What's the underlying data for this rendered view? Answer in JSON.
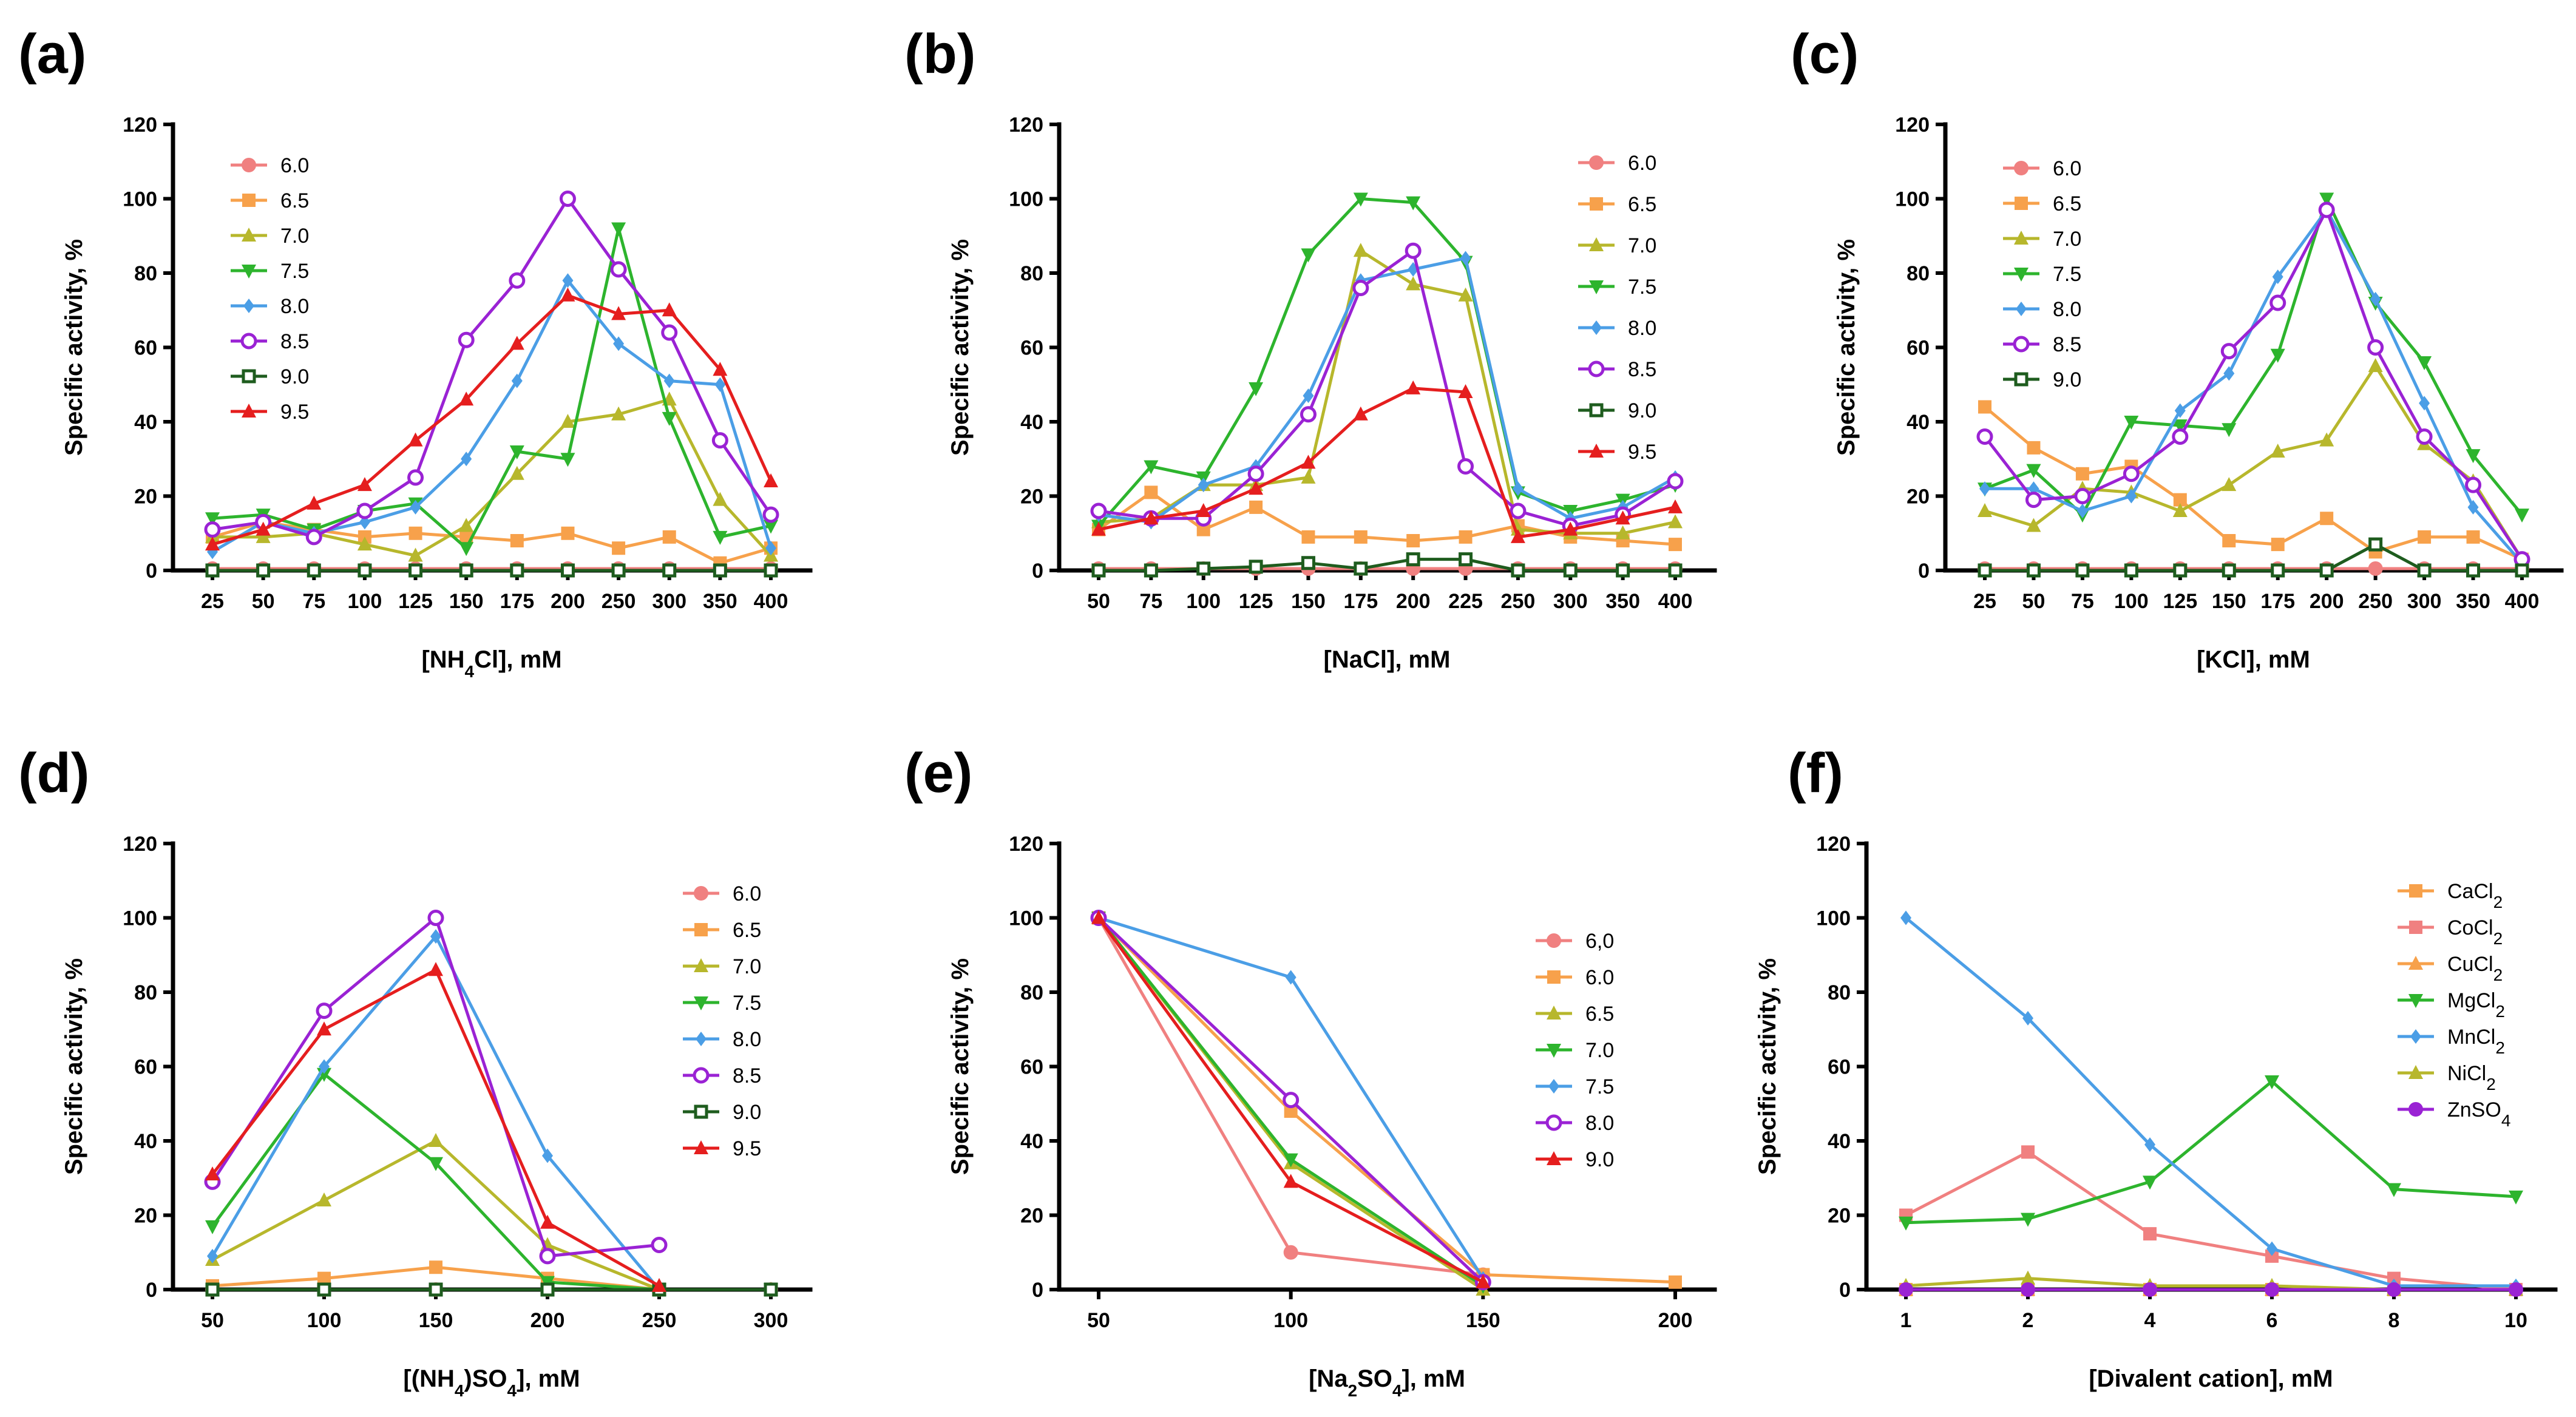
{
  "chart_data": [
    {
      "type": "line",
      "panel": "(a)",
      "xlabel": "[NH4Cl], mM",
      "xlabel_sub": "4",
      "ylabel": "Specific activity, %",
      "ylim": [
        0,
        120
      ],
      "yticks": [
        0,
        20,
        40,
        60,
        80,
        100,
        120
      ],
      "legend": "top-left",
      "categories": [
        "25",
        "50",
        "75",
        "100",
        "125",
        "150",
        "175",
        "200",
        "250",
        "300",
        "350",
        "400"
      ],
      "series": [
        {
          "name": "6.0",
          "color": "#f08080",
          "marker": "circle",
          "values": [
            0.5,
            0.5,
            0.5,
            0.5,
            0.5,
            0.5,
            0.5,
            0.5,
            0.5,
            0.5,
            0.5,
            0.5
          ]
        },
        {
          "name": "6.5",
          "color": "#f7a14b",
          "marker": "square",
          "values": [
            9,
            13,
            11,
            9,
            10,
            9,
            8,
            10,
            6,
            9,
            2,
            6
          ]
        },
        {
          "name": "7.0",
          "color": "#b7b72c",
          "marker": "tri-up",
          "values": [
            9,
            9,
            10,
            7,
            4,
            12,
            26,
            40,
            42,
            46,
            19,
            4
          ]
        },
        {
          "name": "7.5",
          "color": "#2db42d",
          "marker": "tri-down",
          "values": [
            14,
            15,
            11,
            16,
            18,
            6,
            32,
            30,
            92,
            41,
            9,
            12
          ]
        },
        {
          "name": "8.0",
          "color": "#4b9ee6",
          "marker": "diamond",
          "values": [
            5,
            13,
            10,
            13,
            17,
            30,
            51,
            78,
            61,
            51,
            50,
            6
          ]
        },
        {
          "name": "8.5",
          "color": "#9a22d4",
          "marker": "open-circle",
          "values": [
            11,
            13,
            9,
            16,
            25,
            62,
            78,
            100,
            81,
            64,
            35,
            15
          ]
        },
        {
          "name": "9.0",
          "color": "#1e5c1e",
          "marker": "open-square",
          "values": [
            0,
            0,
            0,
            0,
            0,
            0,
            0,
            0,
            0,
            0,
            0,
            0
          ]
        },
        {
          "name": "9.5",
          "color": "#e51e1e",
          "marker": "tri-up",
          "values": [
            7,
            11,
            18,
            23,
            35,
            46,
            61,
            74,
            69,
            70,
            54,
            24
          ]
        }
      ]
    },
    {
      "type": "line",
      "panel": "(b)",
      "xlabel": "[NaCl], mM",
      "xlabel_sub": "",
      "ylabel": "Specific activity, %",
      "ylim": [
        0,
        120
      ],
      "yticks": [
        0,
        20,
        40,
        60,
        80,
        100,
        120
      ],
      "legend": "top-right",
      "categories": [
        "50",
        "75",
        "100",
        "125",
        "150",
        "175",
        "200",
        "225",
        "250",
        "300",
        "350",
        "400"
      ],
      "series": [
        {
          "name": "6.0",
          "color": "#f08080",
          "marker": "circle",
          "values": [
            0.5,
            0.5,
            0.5,
            0.5,
            0.5,
            0.5,
            0.5,
            0.5,
            0.5,
            0.5,
            0.5,
            0.5
          ]
        },
        {
          "name": "6.5",
          "color": "#f7a14b",
          "marker": "square",
          "values": [
            11,
            21,
            11,
            17,
            9,
            9,
            8,
            9,
            12,
            9,
            8,
            7
          ]
        },
        {
          "name": "7.0",
          "color": "#b7b72c",
          "marker": "tri-up",
          "values": [
            13,
            14,
            23,
            23,
            25,
            86,
            77,
            74,
            11,
            10,
            10,
            13
          ]
        },
        {
          "name": "7.5",
          "color": "#2db42d",
          "marker": "tri-down",
          "values": [
            12,
            28,
            25,
            49,
            85,
            100,
            99,
            83,
            21,
            16,
            19,
            23
          ]
        },
        {
          "name": "8.0",
          "color": "#4b9ee6",
          "marker": "diamond",
          "values": [
            15,
            13,
            23,
            28,
            47,
            78,
            81,
            84,
            22,
            14,
            17,
            25
          ]
        },
        {
          "name": "8.5",
          "color": "#9a22d4",
          "marker": "open-circle",
          "values": [
            16,
            14,
            14,
            26,
            42,
            76,
            86,
            28,
            16,
            12,
            15,
            24
          ]
        },
        {
          "name": "9.0",
          "color": "#1e5c1e",
          "marker": "open-square",
          "values": [
            0,
            0,
            0.5,
            1,
            2,
            0.5,
            3,
            3,
            0,
            0,
            0,
            0
          ]
        },
        {
          "name": "9.5",
          "color": "#e51e1e",
          "marker": "tri-up",
          "values": [
            11,
            14,
            16,
            22,
            29,
            42,
            49,
            48,
            9,
            11,
            14,
            17
          ]
        }
      ]
    },
    {
      "type": "line",
      "panel": "(c)",
      "xlabel": "[KCl], mM",
      "xlabel_sub": "",
      "ylabel": "Specific activity, %",
      "ylim": [
        0,
        120
      ],
      "yticks": [
        0,
        20,
        40,
        60,
        80,
        100,
        120
      ],
      "legend": "top-left",
      "categories": [
        "25",
        "50",
        "75",
        "100",
        "125",
        "150",
        "175",
        "200",
        "250",
        "300",
        "350",
        "400"
      ],
      "series": [
        {
          "name": "6.0",
          "color": "#f08080",
          "marker": "circle",
          "values": [
            0.5,
            0.5,
            0.5,
            0.5,
            0.5,
            0.5,
            0.5,
            0.5,
            0.5,
            0.5,
            0.5,
            0.5
          ]
        },
        {
          "name": "6.5",
          "color": "#f7a14b",
          "marker": "square",
          "values": [
            44,
            33,
            26,
            28,
            19,
            8,
            7,
            14,
            5,
            9,
            9,
            3
          ]
        },
        {
          "name": "7.0",
          "color": "#b7b72c",
          "marker": "tri-up",
          "values": [
            16,
            12,
            22,
            21,
            16,
            23,
            32,
            35,
            55,
            34,
            24,
            3
          ]
        },
        {
          "name": "7.5",
          "color": "#2db42d",
          "marker": "tri-down",
          "values": [
            22,
            27,
            15,
            40,
            39,
            38,
            58,
            100,
            72,
            56,
            31,
            15
          ]
        },
        {
          "name": "8.0",
          "color": "#4b9ee6",
          "marker": "diamond",
          "values": [
            22,
            22,
            16,
            20,
            43,
            53,
            79,
            97,
            73,
            45,
            17,
            2
          ]
        },
        {
          "name": "8.5",
          "color": "#9a22d4",
          "marker": "open-circle",
          "values": [
            36,
            19,
            20,
            26,
            36,
            59,
            72,
            97,
            60,
            36,
            23,
            3
          ]
        },
        {
          "name": "9.0",
          "color": "#1e5c1e",
          "marker": "open-square",
          "values": [
            0,
            0,
            0,
            0,
            0,
            0,
            0,
            0,
            7,
            0,
            0,
            0
          ]
        }
      ]
    },
    {
      "type": "line",
      "panel": "(d)",
      "xlabel": "[(NH4)SO4], mM",
      "xlabel_sub": "",
      "ylabel": "Specific activity, %",
      "ylim": [
        0,
        120
      ],
      "yticks": [
        0,
        20,
        40,
        60,
        80,
        100,
        120
      ],
      "legend": "top-right",
      "categories": [
        "50",
        "100",
        "150",
        "200",
        "250",
        "300"
      ],
      "series": [
        {
          "name": "6.0",
          "color": "#f08080",
          "marker": "circle",
          "values": [
            0,
            0,
            0,
            0,
            0,
            0
          ]
        },
        {
          "name": "6.5",
          "color": "#f7a14b",
          "marker": "square",
          "values": [
            1,
            3,
            6,
            3,
            0,
            0
          ]
        },
        {
          "name": "7.0",
          "color": "#b7b72c",
          "marker": "tri-up",
          "values": [
            8,
            24,
            40,
            12,
            0,
            0
          ]
        },
        {
          "name": "7.5",
          "color": "#2db42d",
          "marker": "tri-down",
          "values": [
            17,
            58,
            34,
            2,
            0,
            0
          ]
        },
        {
          "name": "8.0",
          "color": "#4b9ee6",
          "marker": "diamond",
          "values": [
            9,
            60,
            95,
            36,
            0,
            0
          ]
        },
        {
          "name": "8.5",
          "color": "#9a22d4",
          "marker": "open-circle",
          "values": [
            29,
            75,
            100,
            9,
            12,
            null
          ]
        },
        {
          "name": "9.0",
          "color": "#1e5c1e",
          "marker": "open-square",
          "values": [
            0,
            0,
            0,
            0,
            0,
            0
          ]
        },
        {
          "name": "9.5",
          "color": "#e51e1e",
          "marker": "tri-up",
          "values": [
            31,
            70,
            86,
            18,
            1,
            null
          ]
        }
      ]
    },
    {
      "type": "line",
      "panel": "(e)",
      "xlabel": "[Na2SO4], mM",
      "xlabel_sub": "",
      "ylabel": "Specific activity, %",
      "ylim": [
        0,
        120
      ],
      "yticks": [
        0,
        20,
        40,
        60,
        80,
        100,
        120
      ],
      "legend": "right",
      "categories": [
        "50",
        "100",
        "150",
        "200"
      ],
      "series": [
        {
          "name": "6,0",
          "color": "#f08080",
          "marker": "circle",
          "values": [
            100,
            10,
            4,
            null
          ]
        },
        {
          "name": "6.0",
          "color": "#f7a14b",
          "marker": "square",
          "values": [
            100,
            48,
            4,
            2
          ]
        },
        {
          "name": "6.5",
          "color": "#b7b72c",
          "marker": "tri-up",
          "values": [
            100,
            34,
            0,
            null
          ]
        },
        {
          "name": "7.0",
          "color": "#2db42d",
          "marker": "tri-down",
          "values": [
            100,
            35,
            1,
            null
          ]
        },
        {
          "name": "7.5",
          "color": "#4b9ee6",
          "marker": "diamond",
          "values": [
            100,
            84,
            3,
            null
          ]
        },
        {
          "name": "8.0",
          "color": "#9a22d4",
          "marker": "open-circle",
          "values": [
            100,
            51,
            2,
            null
          ]
        },
        {
          "name": "9.0",
          "color": "#e51e1e",
          "marker": "tri-up",
          "values": [
            100,
            29,
            2,
            null
          ]
        }
      ]
    },
    {
      "type": "line",
      "panel": "(f)",
      "xlabel": "[Divalent cation], mM",
      "xlabel_sub": "",
      "ylabel": "Specific activity, %",
      "ylim": [
        0,
        120
      ],
      "yticks": [
        0,
        20,
        40,
        60,
        80,
        100,
        120
      ],
      "legend": "top-right",
      "categories": [
        "1",
        "2",
        "4",
        "6",
        "8",
        "10"
      ],
      "series": [
        {
          "name": "CaCl2",
          "label": "CaCl",
          "sub": "2",
          "color": "#f7a14b",
          "marker": "square",
          "values": [
            0,
            0,
            0,
            0,
            0,
            0
          ]
        },
        {
          "name": "CoCl2",
          "label": "CoCl",
          "sub": "2",
          "color": "#f08080",
          "marker": "square",
          "values": [
            20,
            37,
            15,
            9,
            3,
            0
          ]
        },
        {
          "name": "CuCl2",
          "label": "CuCl",
          "sub": "2",
          "color": "#f7a14b",
          "marker": "tri-up",
          "values": [
            0,
            0,
            0,
            0,
            0,
            0
          ]
        },
        {
          "name": "MgCl2",
          "label": "MgCl",
          "sub": "2",
          "color": "#2db42d",
          "marker": "tri-down",
          "values": [
            18,
            19,
            29,
            56,
            27,
            25
          ]
        },
        {
          "name": "MnCl2",
          "label": "MnCl",
          "sub": "2",
          "color": "#4b9ee6",
          "marker": "diamond",
          "values": [
            100,
            73,
            39,
            11,
            1,
            1
          ]
        },
        {
          "name": "NiCl2",
          "label": "NiCl",
          "sub": "2",
          "color": "#b7b72c",
          "marker": "tri-up",
          "values": [
            1,
            3,
            1,
            1,
            0,
            0
          ]
        },
        {
          "name": "ZnSO4",
          "label": "ZnSO",
          "sub": "4",
          "color": "#9a22d4",
          "marker": "circle",
          "values": [
            0,
            0,
            0,
            0,
            0,
            0
          ]
        }
      ]
    }
  ]
}
